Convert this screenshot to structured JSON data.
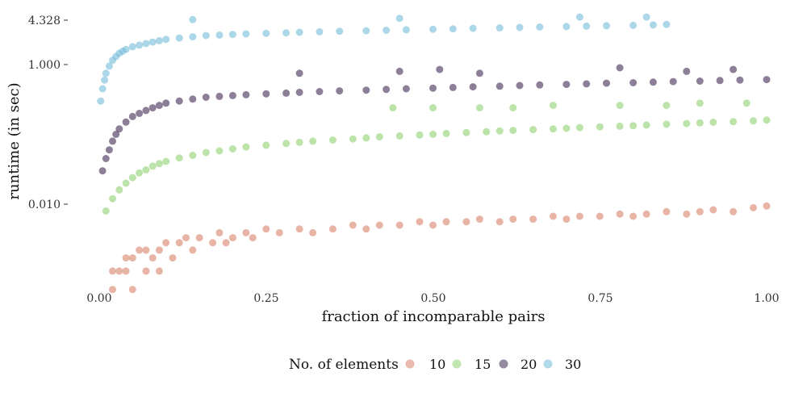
{
  "chart_data": {
    "type": "scatter",
    "xlabel": "fraction of incomparable pairs",
    "ylabel": "runtime (in sec)",
    "x_scale": "linear",
    "y_scale": "log",
    "xlim": [
      0,
      1
    ],
    "ylim": [
      0.00025,
      10
    ],
    "x_ticks": [
      {
        "value": 0.0,
        "label": "0.00"
      },
      {
        "value": 0.25,
        "label": "0.25"
      },
      {
        "value": 0.5,
        "label": "0.50"
      },
      {
        "value": 0.75,
        "label": "0.75"
      },
      {
        "value": 1.0,
        "label": "1.00"
      }
    ],
    "y_ticks": [
      {
        "value": 0.01,
        "label": "0.010"
      },
      {
        "value": 1.0,
        "label": "1.000"
      },
      {
        "value": 4.328,
        "label": "4.328"
      }
    ],
    "grid": false,
    "legend": {
      "title": "No. of elements",
      "position": "bottom"
    },
    "series": [
      {
        "name": "10",
        "color": "#d9826a",
        "x": [
          0.02,
          0.02,
          0.03,
          0.04,
          0.04,
          0.05,
          0.05,
          0.06,
          0.07,
          0.07,
          0.08,
          0.09,
          0.09,
          0.1,
          0.11,
          0.12,
          0.13,
          0.14,
          0.15,
          0.17,
          0.18,
          0.19,
          0.2,
          0.22,
          0.23,
          0.25,
          0.27,
          0.3,
          0.32,
          0.35,
          0.38,
          0.4,
          0.42,
          0.45,
          0.48,
          0.5,
          0.52,
          0.55,
          0.57,
          0.6,
          0.62,
          0.65,
          0.68,
          0.7,
          0.72,
          0.75,
          0.78,
          0.8,
          0.82,
          0.85,
          0.88,
          0.9,
          0.92,
          0.95,
          0.98,
          1.0
        ],
        "y": [
          0.0006,
          0.0011,
          0.0011,
          0.0011,
          0.0017,
          0.0017,
          0.0006,
          0.0022,
          0.0022,
          0.0011,
          0.0017,
          0.0022,
          0.0011,
          0.0028,
          0.0017,
          0.0028,
          0.0033,
          0.0022,
          0.0033,
          0.0028,
          0.0039,
          0.0028,
          0.0033,
          0.0039,
          0.0033,
          0.0044,
          0.0039,
          0.0044,
          0.0039,
          0.0044,
          0.005,
          0.0044,
          0.005,
          0.005,
          0.0056,
          0.005,
          0.0056,
          0.0056,
          0.0061,
          0.0056,
          0.0061,
          0.0061,
          0.0067,
          0.0061,
          0.0067,
          0.0067,
          0.0072,
          0.0067,
          0.0072,
          0.0078,
          0.0072,
          0.0078,
          0.0083,
          0.0078,
          0.0089,
          0.0094
        ]
      },
      {
        "name": "15",
        "color": "#8fd16f",
        "x": [
          0.01,
          0.02,
          0.03,
          0.04,
          0.05,
          0.06,
          0.07,
          0.08,
          0.09,
          0.1,
          0.12,
          0.14,
          0.16,
          0.18,
          0.2,
          0.22,
          0.25,
          0.28,
          0.3,
          0.32,
          0.35,
          0.38,
          0.4,
          0.42,
          0.45,
          0.48,
          0.5,
          0.52,
          0.55,
          0.58,
          0.6,
          0.62,
          0.65,
          0.68,
          0.7,
          0.72,
          0.75,
          0.78,
          0.8,
          0.82,
          0.85,
          0.88,
          0.9,
          0.92,
          0.95,
          0.98,
          1.0,
          0.44,
          0.5,
          0.57,
          0.62,
          0.68,
          0.78,
          0.85,
          0.9,
          0.97
        ],
        "y": [
          0.008,
          0.012,
          0.016,
          0.02,
          0.024,
          0.028,
          0.031,
          0.035,
          0.038,
          0.041,
          0.046,
          0.05,
          0.055,
          0.058,
          0.062,
          0.066,
          0.07,
          0.074,
          0.077,
          0.08,
          0.083,
          0.086,
          0.089,
          0.092,
          0.095,
          0.098,
          0.1,
          0.103,
          0.106,
          0.109,
          0.112,
          0.114,
          0.117,
          0.12,
          0.122,
          0.125,
          0.128,
          0.131,
          0.133,
          0.136,
          0.14,
          0.143,
          0.146,
          0.149,
          0.152,
          0.156,
          0.16,
          0.24,
          0.24,
          0.24,
          0.24,
          0.26,
          0.26,
          0.26,
          0.28,
          0.28
        ]
      },
      {
        "name": "20",
        "color": "#3f2a52",
        "x": [
          0.005,
          0.01,
          0.015,
          0.02,
          0.025,
          0.03,
          0.04,
          0.05,
          0.06,
          0.07,
          0.08,
          0.09,
          0.1,
          0.12,
          0.14,
          0.16,
          0.18,
          0.2,
          0.22,
          0.25,
          0.28,
          0.3,
          0.33,
          0.36,
          0.4,
          0.43,
          0.46,
          0.5,
          0.53,
          0.56,
          0.6,
          0.63,
          0.66,
          0.7,
          0.73,
          0.76,
          0.8,
          0.83,
          0.86,
          0.9,
          0.93,
          0.96,
          1.0,
          0.3,
          0.45,
          0.51,
          0.57,
          0.78,
          0.88,
          0.95
        ],
        "y": [
          0.03,
          0.045,
          0.06,
          0.08,
          0.1,
          0.12,
          0.15,
          0.18,
          0.2,
          0.22,
          0.24,
          0.26,
          0.28,
          0.3,
          0.32,
          0.34,
          0.35,
          0.36,
          0.37,
          0.38,
          0.39,
          0.4,
          0.41,
          0.42,
          0.43,
          0.44,
          0.45,
          0.46,
          0.47,
          0.48,
          0.49,
          0.5,
          0.51,
          0.52,
          0.53,
          0.54,
          0.55,
          0.56,
          0.57,
          0.58,
          0.59,
          0.6,
          0.61,
          0.75,
          0.8,
          0.85,
          0.75,
          0.9,
          0.8,
          0.85
        ]
      },
      {
        "name": "30",
        "color": "#74bcd8",
        "x": [
          0.002,
          0.005,
          0.008,
          0.01,
          0.015,
          0.02,
          0.025,
          0.03,
          0.035,
          0.04,
          0.05,
          0.06,
          0.07,
          0.08,
          0.09,
          0.1,
          0.12,
          0.14,
          0.16,
          0.18,
          0.2,
          0.22,
          0.25,
          0.28,
          0.3,
          0.33,
          0.36,
          0.4,
          0.43,
          0.46,
          0.5,
          0.53,
          0.56,
          0.6,
          0.63,
          0.66,
          0.7,
          0.73,
          0.76,
          0.8,
          0.83,
          0.85,
          0.14,
          0.45,
          0.72,
          0.82
        ],
        "y": [
          0.3,
          0.45,
          0.6,
          0.75,
          0.95,
          1.15,
          1.3,
          1.45,
          1.55,
          1.65,
          1.8,
          1.9,
          2.0,
          2.1,
          2.2,
          2.3,
          2.4,
          2.5,
          2.6,
          2.65,
          2.7,
          2.75,
          2.8,
          2.85,
          2.9,
          2.95,
          3.0,
          3.05,
          3.1,
          3.15,
          3.2,
          3.25,
          3.3,
          3.35,
          3.4,
          3.45,
          3.5,
          3.55,
          3.6,
          3.65,
          3.7,
          3.75,
          4.4,
          4.6,
          4.8,
          4.8
        ]
      }
    ]
  }
}
